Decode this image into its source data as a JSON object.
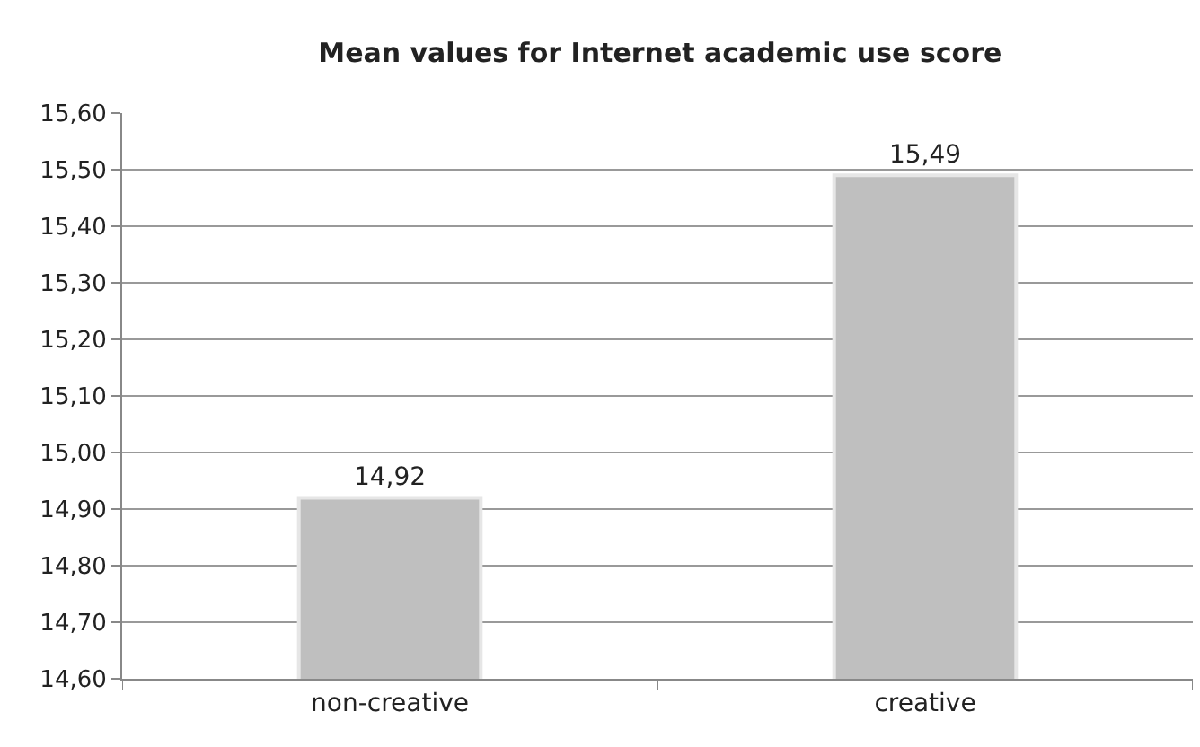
{
  "chart_data": {
    "type": "bar",
    "title": "Mean values for Internet academic use score",
    "categories": [
      "non-creative",
      "creative"
    ],
    "values": [
      14.92,
      15.49
    ],
    "value_labels": [
      "14,92",
      "15,49"
    ],
    "color": "#bfbfbf",
    "ylim": [
      14.6,
      15.6
    ],
    "yticks": [
      {
        "value": 14.6,
        "label": "14,60"
      },
      {
        "value": 14.7,
        "label": "14,70"
      },
      {
        "value": 14.8,
        "label": "14,80"
      },
      {
        "value": 14.9,
        "label": "14,90"
      },
      {
        "value": 15.0,
        "label": "15,00"
      },
      {
        "value": 15.1,
        "label": "15,10"
      },
      {
        "value": 15.2,
        "label": "15,20"
      },
      {
        "value": 15.3,
        "label": "15,30"
      },
      {
        "value": 15.4,
        "label": "15,40"
      },
      {
        "value": 15.5,
        "label": "15,50"
      },
      {
        "value": 15.6,
        "label": "15,60"
      }
    ],
    "grid": "y",
    "legend": false
  }
}
